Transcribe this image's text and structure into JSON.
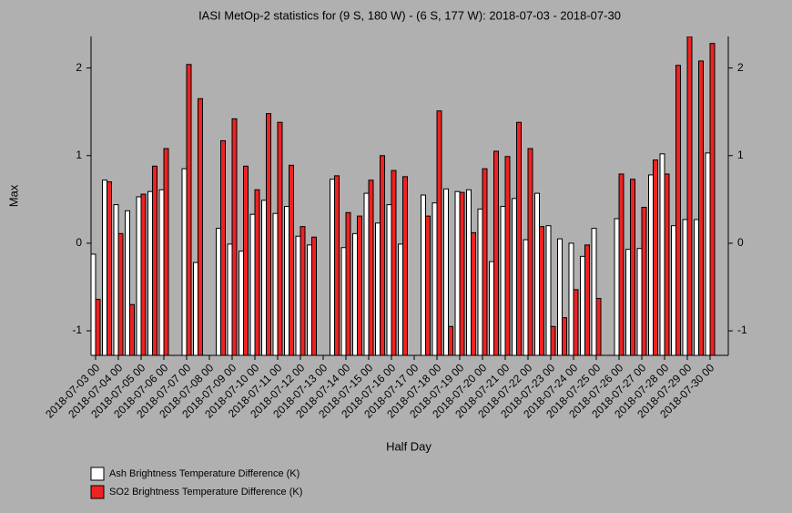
{
  "chart_data": {
    "type": "bar",
    "title": "IASI MetOp-2 statistics for (9 S, 180 W) - (6 S, 177 W): 2018-07-03 - 2018-07-30",
    "x_label": "Half Day",
    "y_label": "Max",
    "categories": [
      "2018-07-03 00",
      null,
      "2018-07-04 00",
      null,
      "2018-07-05 00",
      null,
      "2018-07-06 00",
      null,
      "2018-07-07 00",
      null,
      "2018-07-08 00",
      null,
      "2018-07-09 00",
      null,
      "2018-07-10 00",
      null,
      "2018-07-11 00",
      null,
      "2018-07-12 00",
      null,
      "2018-07-13 00",
      null,
      "2018-07-14 00",
      null,
      "2018-07-15 00",
      null,
      "2018-07-16 00",
      null,
      "2018-07-17 00",
      null,
      "2018-07-18 00",
      null,
      "2018-07-19 00",
      null,
      "2018-07-20 00",
      null,
      "2018-07-21 00",
      null,
      "2018-07-22 00",
      null,
      "2018-07-23 00",
      null,
      "2018-07-24 00",
      null,
      "2018-07-25 00",
      null,
      "2018-07-26 00",
      null,
      "2018-07-27 00",
      null,
      "2018-07-28 00",
      null,
      "2018-07-29 00",
      null,
      "2018-07-30 00"
    ],
    "series": [
      {
        "name": "Ash Brightness Temperature Difference (K)",
        "color": "#ffffff",
        "values": [
          -0.125,
          0.72,
          0.44,
          0.37,
          0.53,
          0.59,
          0.61,
          null,
          0.85,
          -0.22,
          null,
          0.17,
          -0.01,
          -0.09,
          0.33,
          0.49,
          0.34,
          0.42,
          0.08,
          -0.02,
          null,
          0.73,
          -0.05,
          0.11,
          0.57,
          0.23,
          0.44,
          -0.01,
          null,
          0.55,
          0.46,
          0.62,
          0.59,
          0.61,
          0.39,
          -0.21,
          0.42,
          0.51,
          0.04,
          0.57,
          0.2,
          0.05,
          0.0,
          -0.15,
          0.17,
          null,
          0.28,
          -0.07,
          -0.06,
          0.78,
          1.02,
          0.2,
          0.27,
          0.27,
          1.03
        ]
      },
      {
        "name": "SO2 Brightness Temperature Difference (K)",
        "color": "#ee2222",
        "values": [
          -0.64,
          0.7,
          0.11,
          -0.7,
          0.56,
          0.88,
          1.08,
          null,
          2.04,
          1.65,
          null,
          1.17,
          1.42,
          0.88,
          0.61,
          1.48,
          1.38,
          0.89,
          0.19,
          0.07,
          null,
          0.77,
          0.35,
          0.31,
          0.72,
          1.0,
          0.83,
          0.76,
          null,
          0.31,
          1.51,
          -0.95,
          0.58,
          0.12,
          0.85,
          1.05,
          0.99,
          1.38,
          1.08,
          0.19,
          -0.95,
          -0.85,
          -0.53,
          -0.02,
          -0.63,
          null,
          0.79,
          0.73,
          0.41,
          0.95,
          0.79,
          2.03,
          2.36,
          2.08,
          2.28
        ]
      }
    ],
    "ylim": [
      -1.28,
      2.36
    ],
    "yticks": [
      -1,
      0,
      1,
      2
    ],
    "legend": "bottom-left"
  }
}
